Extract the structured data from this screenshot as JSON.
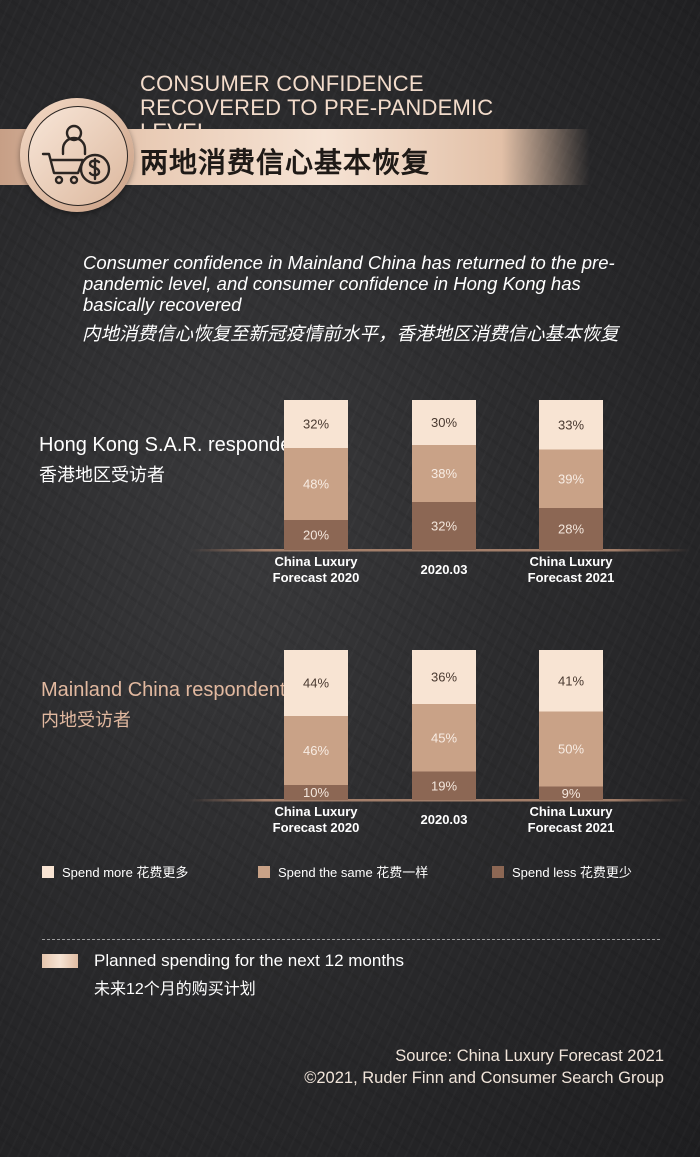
{
  "header": {
    "title_en": "CONSUMER CONFIDENCE RECOVERED TO PRE-PANDEMIC LEVEL",
    "title_cn": "两地消费信心基本恢复",
    "badge_icon": "shopping-cart-money-icon"
  },
  "intro": {
    "en": "Consumer confidence in Mainland China has returned to the pre-pandemic level, and consumer confidence in Hong Kong has basically recovered",
    "cn": "内地消费信心恢复至新冠疫情前水平，香港地区消费信心基本恢复"
  },
  "segments": {
    "hk": {
      "label_en": "Hong Kong S.A.R. respondents",
      "label_cn": "香港地区受访者"
    },
    "mc": {
      "label_en": "Mainland China respondents",
      "label_cn": "内地受访者"
    }
  },
  "colors": {
    "spend_more": "#f8e4d3",
    "spend_same": "#c9a287",
    "spend_less": "#8c6754",
    "mc_label": "#e2b9a0"
  },
  "legend": [
    {
      "label": "Spend more 花费更多",
      "color": "#f8e4d3"
    },
    {
      "label": "Spend the same 花费一样",
      "color": "#c9a287"
    },
    {
      "label": "Spend less 花费更少",
      "color": "#8c6754"
    }
  ],
  "planned": {
    "en": "Planned spending for the next 12 months",
    "cn": "未来12个月的购买计划"
  },
  "source": {
    "line1": "Source: China Luxury Forecast 2021",
    "line2": "©2021, Ruder Finn and Consumer Search Group"
  },
  "chart_data": [
    {
      "type": "bar",
      "stacked": true,
      "unit": "%",
      "categories": [
        "China Luxury Forecast 2020",
        "2020.03",
        "China Luxury Forecast 2021"
      ],
      "series": [
        {
          "name": "Spend less 花费更少",
          "values": [
            20,
            32,
            28
          ]
        },
        {
          "name": "Spend the same 花费一样",
          "values": [
            48,
            38,
            39
          ]
        },
        {
          "name": "Spend more 花费更多",
          "values": [
            32,
            30,
            33
          ]
        }
      ]
    },
    {
      "type": "bar",
      "stacked": true,
      "unit": "%",
      "categories": [
        "China Luxury Forecast 2020",
        "2020.03",
        "China Luxury Forecast 2021"
      ],
      "series": [
        {
          "name": "Spend less 花费更少",
          "values": [
            10,
            19,
            9
          ]
        },
        {
          "name": "Spend the same 花费一样",
          "values": [
            46,
            45,
            50
          ]
        },
        {
          "name": "Spend more 花费更多",
          "values": [
            44,
            36,
            41
          ]
        }
      ]
    }
  ]
}
